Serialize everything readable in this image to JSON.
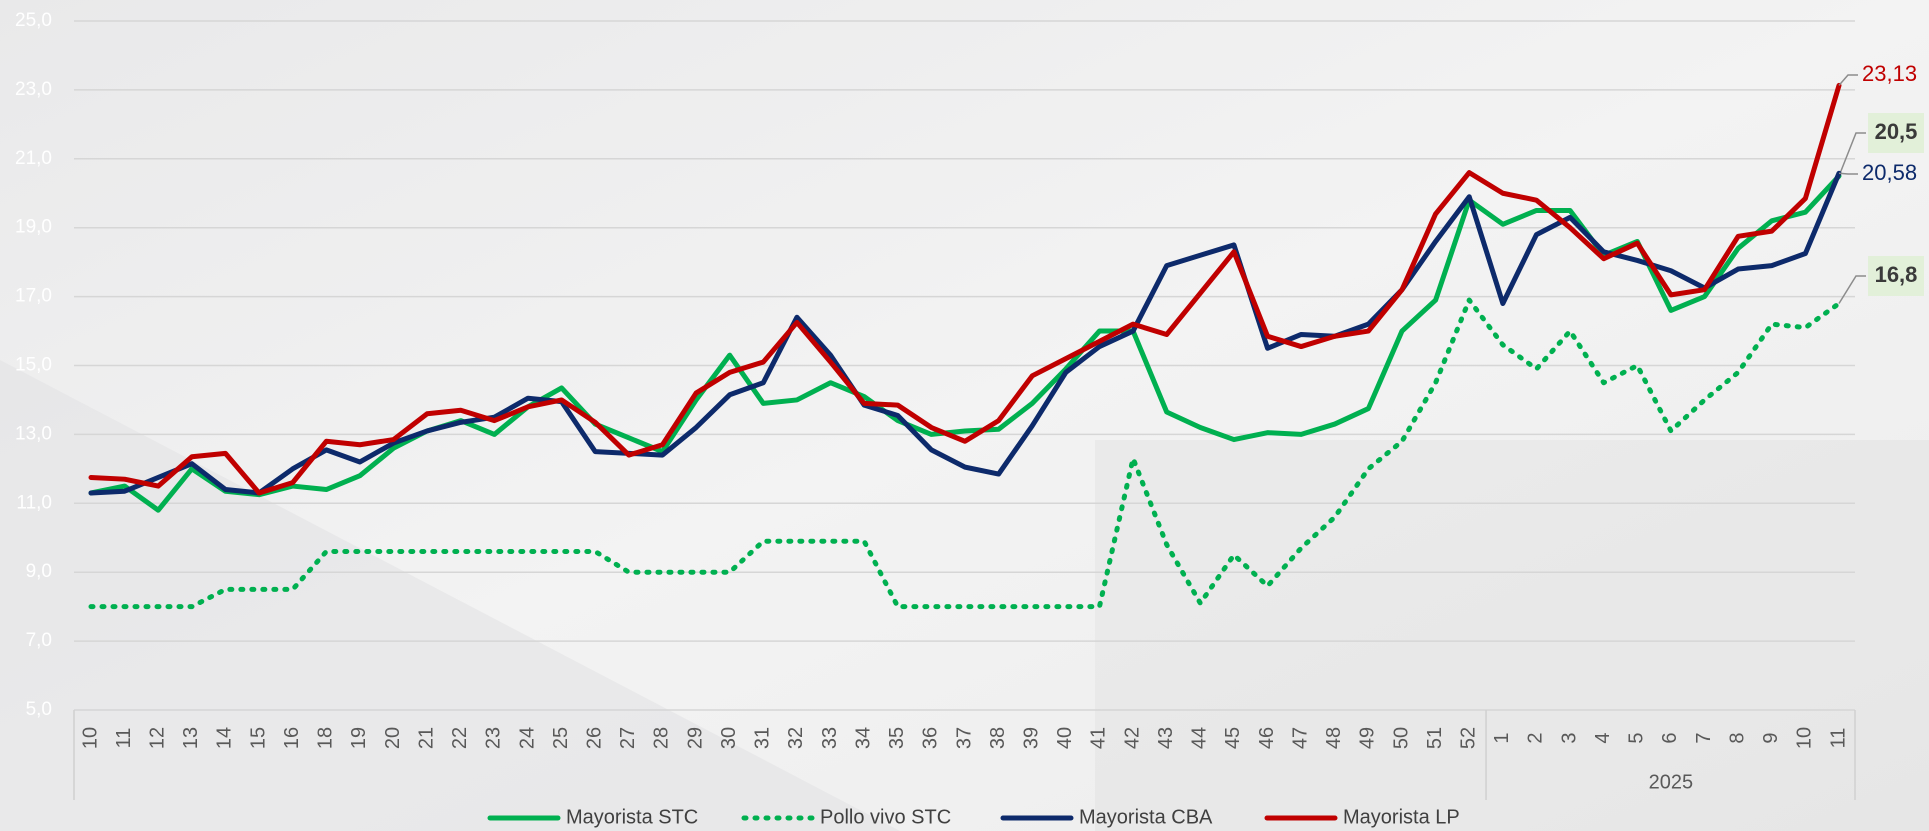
{
  "chart_data": {
    "type": "line",
    "categories": [
      "10",
      "11",
      "12",
      "13",
      "14",
      "15",
      "16",
      "18",
      "19",
      "20",
      "21",
      "22",
      "23",
      "24",
      "25",
      "26",
      "27",
      "28",
      "29",
      "30",
      "31",
      "32",
      "33",
      "34",
      "35",
      "36",
      "37",
      "38",
      "39",
      "40",
      "41",
      "42",
      "43",
      "44",
      "45",
      "46",
      "47",
      "48",
      "49",
      "50",
      "51",
      "52",
      "1",
      "2",
      "3",
      "4",
      "5",
      "6",
      "7",
      "8",
      "9",
      "10",
      "11"
    ],
    "category_groups": [
      {
        "label": null,
        "count": 42
      },
      {
        "label": "2025",
        "count": 11
      }
    ],
    "ylim": [
      5,
      25
    ],
    "yticks": [
      {
        "value": 5,
        "label": "5,0"
      },
      {
        "value": 7,
        "label": "7,0"
      },
      {
        "value": 9,
        "label": "9,0"
      },
      {
        "value": 11,
        "label": "11,0"
      },
      {
        "value": 13,
        "label": "13,0"
      },
      {
        "value": 15,
        "label": "15,0"
      },
      {
        "value": 17,
        "label": "17,0"
      },
      {
        "value": 19,
        "label": "19,0"
      },
      {
        "value": 21,
        "label": "21,0"
      },
      {
        "value": 23,
        "label": "23,0"
      },
      {
        "value": 25,
        "label": "25,0"
      }
    ],
    "grid": true,
    "legend": "bottom",
    "series": [
      {
        "name": "Mayorista STC",
        "color": "#00b050",
        "dash": "solid",
        "values": [
          11.3,
          11.5,
          10.8,
          12.0,
          11.35,
          11.25,
          11.5,
          11.4,
          11.8,
          12.6,
          13.1,
          13.4,
          13.0,
          13.8,
          14.35,
          13.3,
          12.9,
          12.5,
          14.0,
          15.3,
          13.9,
          14.0,
          14.5,
          14.1,
          13.4,
          13.0,
          13.1,
          13.15,
          13.9,
          14.9,
          16.0,
          16.0,
          13.65,
          13.2,
          12.85,
          13.05,
          13.0,
          13.3,
          13.75,
          16.0,
          16.9,
          19.8,
          19.1,
          19.5,
          19.5,
          18.2,
          18.6,
          16.6,
          17.0,
          18.4,
          19.2,
          19.45,
          20.5
        ],
        "value_labels": [
          null,
          null,
          null,
          null,
          null,
          null,
          null,
          null,
          null,
          null,
          null,
          null,
          null,
          null,
          null,
          null,
          null,
          null,
          null,
          null,
          null,
          null,
          null,
          null,
          null,
          null,
          null,
          null,
          null,
          null,
          null,
          null,
          null,
          null,
          null,
          null,
          null,
          null,
          null,
          null,
          null,
          null,
          null,
          null,
          null,
          null,
          null,
          null,
          null,
          null,
          null,
          null,
          "20,5"
        ]
      },
      {
        "name": "Pollo vivo STC",
        "color": "#00b050",
        "dash": "dotted",
        "values": [
          8.0,
          8.0,
          8.0,
          8.0,
          8.5,
          8.5,
          8.5,
          9.6,
          9.6,
          9.6,
          9.6,
          9.6,
          9.6,
          9.6,
          9.6,
          9.6,
          9.0,
          9.0,
          9.0,
          9.0,
          9.9,
          9.9,
          9.9,
          9.9,
          8.0,
          8.0,
          8.0,
          8.0,
          8.0,
          8.0,
          8.0,
          12.3,
          9.8,
          8.1,
          9.5,
          8.6,
          9.7,
          10.6,
          12.0,
          12.8,
          14.5,
          16.9,
          15.6,
          14.9,
          16.0,
          14.5,
          15.0,
          13.1,
          14.0,
          14.8,
          16.2,
          16.1,
          16.8
        ],
        "value_labels": [
          null,
          null,
          null,
          null,
          null,
          null,
          null,
          null,
          null,
          null,
          null,
          null,
          null,
          null,
          null,
          null,
          null,
          null,
          null,
          null,
          null,
          null,
          null,
          null,
          null,
          null,
          null,
          null,
          null,
          null,
          null,
          null,
          null,
          null,
          null,
          null,
          null,
          null,
          null,
          null,
          null,
          null,
          null,
          null,
          null,
          null,
          null,
          null,
          null,
          null,
          null,
          null,
          "16,8"
        ]
      },
      {
        "name": "Mayorista CBA",
        "color": "#0d2a6b",
        "dash": "solid",
        "values": [
          11.3,
          11.35,
          11.75,
          12.15,
          11.4,
          11.3,
          12.0,
          12.55,
          12.2,
          12.75,
          13.1,
          13.35,
          13.5,
          14.05,
          13.95,
          12.5,
          12.45,
          12.4,
          13.2,
          14.15,
          14.5,
          16.4,
          15.3,
          13.85,
          13.55,
          12.55,
          12.05,
          11.85,
          13.25,
          14.8,
          15.55,
          16.0,
          17.9,
          18.2,
          18.5,
          15.5,
          15.9,
          15.85,
          16.2,
          17.2,
          18.6,
          19.9,
          16.8,
          18.8,
          19.3,
          18.3,
          18.05,
          17.75,
          17.25,
          17.8,
          17.9,
          18.25,
          20.58
        ],
        "value_labels": [
          null,
          null,
          null,
          null,
          null,
          null,
          null,
          null,
          null,
          null,
          null,
          null,
          null,
          null,
          null,
          null,
          null,
          null,
          null,
          null,
          null,
          null,
          null,
          null,
          null,
          null,
          null,
          null,
          null,
          null,
          null,
          null,
          null,
          null,
          null,
          null,
          null,
          null,
          null,
          null,
          null,
          null,
          null,
          null,
          null,
          null,
          null,
          null,
          null,
          null,
          null,
          null,
          "20,58"
        ]
      },
      {
        "name": "Mayorista LP",
        "color": "#c00000",
        "dash": "solid",
        "values": [
          11.75,
          11.7,
          11.5,
          12.35,
          12.45,
          11.3,
          11.6,
          12.8,
          12.7,
          12.85,
          13.6,
          13.7,
          13.4,
          13.8,
          14.0,
          13.35,
          12.4,
          12.7,
          14.2,
          14.8,
          15.1,
          16.25,
          15.1,
          13.9,
          13.85,
          13.2,
          12.8,
          13.4,
          14.7,
          15.2,
          15.7,
          16.2,
          15.9,
          17.1,
          18.3,
          15.85,
          15.55,
          15.85,
          16.0,
          17.2,
          19.4,
          20.6,
          20.0,
          19.8,
          19.0,
          18.1,
          18.55,
          17.05,
          17.2,
          18.75,
          18.9,
          19.85,
          23.13
        ],
        "value_labels": [
          null,
          null,
          null,
          null,
          null,
          null,
          null,
          null,
          null,
          null,
          null,
          null,
          null,
          null,
          null,
          null,
          null,
          null,
          null,
          null,
          null,
          null,
          null,
          null,
          null,
          null,
          null,
          null,
          null,
          null,
          null,
          null,
          null,
          null,
          null,
          null,
          null,
          null,
          null,
          null,
          null,
          null,
          null,
          null,
          null,
          null,
          null,
          null,
          null,
          null,
          null,
          null,
          "23,13"
        ]
      }
    ]
  }
}
